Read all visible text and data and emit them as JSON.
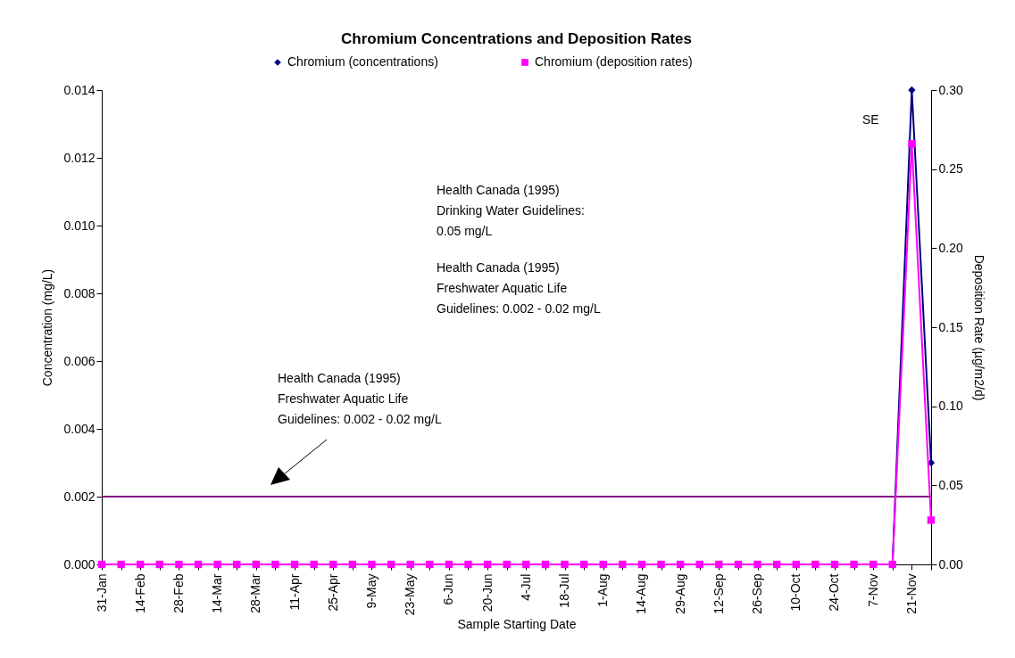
{
  "chart_data": {
    "type": "line",
    "title": "Chromium Concentrations and Deposition Rates",
    "xlabel": "Sample Starting Date",
    "ylabel": "Concentration (mg/L)",
    "y2label": "Deposition Rate (µg/m2/d)",
    "categories": [
      "31-Jan",
      null,
      "14-Feb",
      null,
      "28-Feb",
      null,
      "14-Mar",
      null,
      "28-Mar",
      null,
      "11-Apr",
      null,
      "25-Apr",
      null,
      "9-May",
      null,
      "23-May",
      null,
      "6-Jun",
      null,
      "20-Jun",
      null,
      "4-Jul",
      null,
      "18-Jul",
      null,
      "1-Aug",
      null,
      "14-Aug",
      null,
      "29-Aug",
      null,
      "12-Sep",
      null,
      "26-Sep",
      null,
      "10-Oct",
      null,
      "24-Oct",
      null,
      "7-Nov",
      null,
      "21-Nov",
      null
    ],
    "series": [
      {
        "name": "Chromium (concentrations)",
        "color": "#000080",
        "marker": "diamond",
        "values": [
          null,
          null,
          null,
          null,
          null,
          null,
          null,
          null,
          null,
          null,
          null,
          null,
          null,
          null,
          null,
          null,
          null,
          null,
          null,
          null,
          null,
          null,
          null,
          null,
          null,
          null,
          null,
          null,
          null,
          null,
          null,
          null,
          null,
          null,
          null,
          null,
          null,
          null,
          null,
          null,
          null,
          0,
          0.014,
          0.003
        ]
      },
      {
        "name": "Chromium (deposition rates)",
        "color": "#ff00ff",
        "marker": "square",
        "axis": "y2",
        "values": [
          0,
          0,
          0,
          0,
          0,
          0,
          0,
          0,
          0,
          0,
          0,
          0,
          0,
          0,
          0,
          0,
          0,
          0,
          0,
          0,
          0,
          0,
          0,
          0,
          0,
          0,
          0,
          0,
          0,
          0,
          0,
          0,
          0,
          0,
          0,
          0,
          0,
          0,
          0,
          0,
          0,
          0,
          0.266,
          0.028
        ]
      }
    ],
    "ylim": [
      0,
      0.014
    ],
    "yticks": [
      {
        "value": 0,
        "label": "0.000"
      },
      {
        "value": 0.002,
        "label": "0.002"
      },
      {
        "value": 0.004,
        "label": "0.004"
      },
      {
        "value": 0.006,
        "label": "0.006"
      },
      {
        "value": 0.008,
        "label": "0.008"
      },
      {
        "value": 0.01,
        "label": "0.010"
      },
      {
        "value": 0.012,
        "label": "0.012"
      },
      {
        "value": 0.014,
        "label": "0.014"
      }
    ],
    "y2lim": [
      0,
      0.3
    ],
    "y2ticks": [
      {
        "value": 0,
        "label": "0.00"
      },
      {
        "value": 0.05,
        "label": "0.05"
      },
      {
        "value": 0.1,
        "label": "0.10"
      },
      {
        "value": 0.15,
        "label": "0.15"
      },
      {
        "value": 0.2,
        "label": "0.20"
      },
      {
        "value": 0.25,
        "label": "0.25"
      },
      {
        "value": 0.3,
        "label": "0.30"
      }
    ],
    "ref_lines": [
      {
        "axis": "y",
        "value": 0.002,
        "color": "#800080"
      }
    ],
    "annotations": [
      "Health  Canada (1995)\nDrinking Water Guidelines:\n0.05 mg/L",
      "Health Canada (1995)\nFreshwater Aquatic Life\nGuidelines:  0.002 - 0.02 mg/L",
      "Health Canada (1995)\nFreshwater Aquatic Life\nGuidelines:  0.002 - 0.02 mg/L",
      "SE"
    ],
    "legend": "top",
    "grid": false
  }
}
